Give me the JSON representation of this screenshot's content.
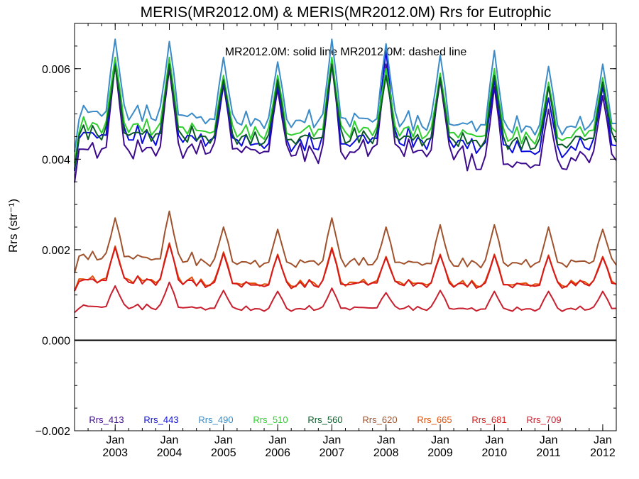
{
  "chart_data": {
    "type": "line",
    "title": "MERIS(MR2012.0M) & MERIS(MR2012.0M)  Rrs for Eutrophic",
    "annotation": "MR2012.0M: solid line   MR2012.0M: dashed line",
    "ylabel": "Rrs (str⁻¹)",
    "xlabel": "",
    "ylim": [
      -0.002,
      0.007
    ],
    "xlim": [
      2002.25,
      2012.25
    ],
    "yticks": [
      {
        "value": -0.002,
        "label": "−0.002"
      },
      {
        "value": 0.0,
        "label": "0.000"
      },
      {
        "value": 0.002,
        "label": "0.002"
      },
      {
        "value": 0.004,
        "label": "0.004"
      },
      {
        "value": 0.006,
        "label": "0.006"
      }
    ],
    "xticks": [
      {
        "value": 2003.0,
        "month": "Jan",
        "year": "2003"
      },
      {
        "value": 2004.0,
        "month": "Jan",
        "year": "2004"
      },
      {
        "value": 2005.0,
        "month": "Jan",
        "year": "2005"
      },
      {
        "value": 2006.0,
        "month": "Jan",
        "year": "2006"
      },
      {
        "value": 2007.0,
        "month": "Jan",
        "year": "2007"
      },
      {
        "value": 2008.0,
        "month": "Jan",
        "year": "2008"
      },
      {
        "value": 2009.0,
        "month": "Jan",
        "year": "2009"
      },
      {
        "value": 2010.0,
        "month": "Jan",
        "year": "2010"
      },
      {
        "value": 2011.0,
        "month": "Jan",
        "year": "2011"
      },
      {
        "value": 2012.0,
        "month": "Jan",
        "year": "2012"
      }
    ],
    "zero_line": true,
    "grid": false,
    "legend_position": "bottom",
    "x_start": 2002.25,
    "x_step": 0.08333,
    "series": [
      {
        "name": "Rrs_413",
        "color": "#3c0a8c",
        "base": 0.0041,
        "peak_amp": 0.00195,
        "peaks": [
          0.0061,
          0.006,
          0.00565,
          0.00555,
          0.0061,
          0.0061,
          0.00575,
          0.0056,
          0.0051,
          0.0054
        ],
        "troughs": [
          0.0041,
          0.00412,
          0.00415,
          0.0041,
          0.00402,
          0.00415,
          0.00408,
          0.0038,
          0.0038,
          0.004
        ]
      },
      {
        "name": "Rrs_443",
        "color": "#0b0be0",
        "base": 0.0044,
        "peak_amp": 0.00175,
        "peaks": [
          0.00615,
          0.00615,
          0.0057,
          0.00565,
          0.00615,
          0.0064,
          0.00585,
          0.00575,
          0.00535,
          0.0056
        ],
        "troughs": [
          0.00445,
          0.0044,
          0.00435,
          0.00425,
          0.00425,
          0.00435,
          0.0043,
          0.0042,
          0.0041,
          0.00425
        ]
      },
      {
        "name": "Rrs_490",
        "color": "#3a8bc8",
        "base": 0.0049,
        "peak_amp": 0.0017,
        "peaks": [
          0.00665,
          0.0066,
          0.00625,
          0.00615,
          0.00665,
          0.00655,
          0.0063,
          0.0064,
          0.00605,
          0.0061
        ],
        "troughs": [
          0.00495,
          0.0049,
          0.0048,
          0.00475,
          0.00478,
          0.0048,
          0.0047,
          0.00465,
          0.0046,
          0.0047
        ]
      },
      {
        "name": "Rrs_510",
        "color": "#2ecf2e",
        "base": 0.0046,
        "peak_amp": 0.00165,
        "peaks": [
          0.00625,
          0.00625,
          0.00585,
          0.00585,
          0.00625,
          0.006,
          0.0059,
          0.006,
          0.0057,
          0.0058
        ],
        "troughs": [
          0.00465,
          0.0046,
          0.00455,
          0.0045,
          0.00455,
          0.00458,
          0.0045,
          0.00445,
          0.0044,
          0.00455
        ]
      },
      {
        "name": "Rrs_560",
        "color": "#0a5a28",
        "base": 0.00445,
        "peak_amp": 0.00165,
        "peaks": [
          0.00605,
          0.0061,
          0.00575,
          0.00575,
          0.0061,
          0.00585,
          0.0058,
          0.00585,
          0.0056,
          0.0057
        ],
        "troughs": [
          0.0045,
          0.00445,
          0.0044,
          0.00435,
          0.0044,
          0.00442,
          0.00435,
          0.0043,
          0.00425,
          0.0044
        ]
      },
      {
        "name": "Rrs_620",
        "color": "#a0522d",
        "base": 0.00175,
        "peak_amp": 0.0009,
        "peaks": [
          0.0027,
          0.00285,
          0.0025,
          0.00245,
          0.0027,
          0.0025,
          0.00255,
          0.00255,
          0.0025,
          0.00245
        ],
        "troughs": [
          0.0018,
          0.00175,
          0.00168,
          0.00165,
          0.00168,
          0.00168,
          0.00165,
          0.00165,
          0.00165,
          0.0017
        ]
      },
      {
        "name": "Rrs_665",
        "color": "#e0500a",
        "base": 0.00128,
        "peak_amp": 0.00075,
        "peaks": [
          0.00208,
          0.00215,
          0.00195,
          0.0019,
          0.00205,
          0.00185,
          0.0019,
          0.0019,
          0.00188,
          0.00185
        ],
        "troughs": [
          0.0013,
          0.00128,
          0.00122,
          0.0012,
          0.00122,
          0.00125,
          0.00122,
          0.0012,
          0.0012,
          0.00125
        ]
      },
      {
        "name": "Rrs_681",
        "color": "#d81818",
        "base": 0.00128,
        "peak_amp": 0.00075,
        "peaks": [
          0.00205,
          0.00212,
          0.00192,
          0.00188,
          0.00202,
          0.00183,
          0.00188,
          0.00188,
          0.00186,
          0.00183
        ],
        "troughs": [
          0.00128,
          0.00126,
          0.0012,
          0.00118,
          0.0012,
          0.00123,
          0.0012,
          0.00118,
          0.00118,
          0.00123
        ]
      },
      {
        "name": "Rrs_709",
        "color": "#c81e2e",
        "base": 0.00072,
        "peak_amp": 0.00045,
        "peaks": [
          0.0012,
          0.00128,
          0.0011,
          0.00108,
          0.00115,
          0.00105,
          0.0011,
          0.00108,
          0.00108,
          0.00108
        ],
        "troughs": [
          0.00072,
          0.0007,
          0.00068,
          0.00066,
          0.00068,
          0.0007,
          0.00068,
          0.00066,
          0.00066,
          0.00068
        ]
      }
    ]
  }
}
